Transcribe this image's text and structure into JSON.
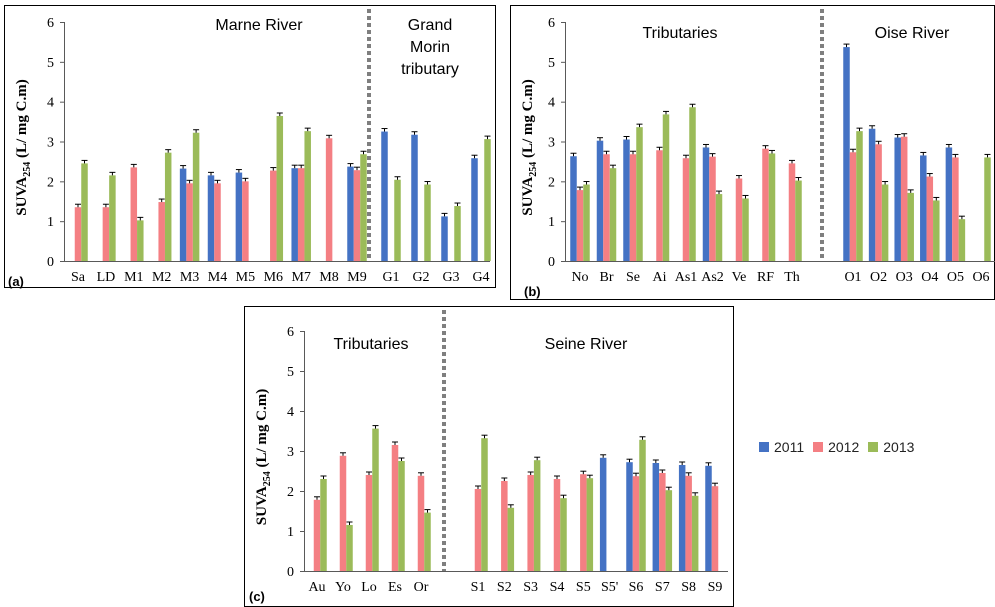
{
  "colors": {
    "2011": "#4472C4",
    "2012": "#F47F83",
    "2013": "#9BBB59",
    "divider": "#7f7f7f",
    "axis": "#595959"
  },
  "legend": [
    {
      "label": "2011",
      "color": "#4472C4"
    },
    {
      "label": "2012",
      "color": "#F47F83"
    },
    {
      "label": "2013",
      "color": "#9BBB59"
    }
  ],
  "chart_data": [
    {
      "panel": "(a)",
      "type": "bar",
      "ylabel_main": "SUVA",
      "ylabel_sub": "254",
      "ylabel_rest": " (L/ mg C.m)",
      "ylim": [
        0,
        6
      ],
      "yticks": [
        "0",
        "1",
        "2",
        "3",
        "4",
        "5",
        "6"
      ],
      "series_names": [
        "2011",
        "2012",
        "2013"
      ],
      "regions": [
        {
          "lines": [
            "Marne River"
          ],
          "categories": [
            "Sa",
            "LD",
            "M1",
            "M2",
            "M3",
            "M4",
            "M5",
            "M6",
            "M7",
            "M8",
            "M9"
          ]
        },
        {
          "lines": [
            "Grand",
            "Morin",
            "tributary"
          ],
          "categories": [
            "G1",
            "G2",
            "G3",
            "G4"
          ]
        }
      ],
      "values": [
        [
          null,
          1.35,
          2.45
        ],
        [
          null,
          1.35,
          2.15
        ],
        [
          null,
          2.35,
          1.02
        ],
        [
          null,
          1.48,
          2.72
        ],
        [
          2.32,
          1.95,
          3.22
        ],
        [
          2.15,
          1.95,
          null
        ],
        [
          2.22,
          2.0,
          null
        ],
        [
          null,
          2.27,
          3.64
        ],
        [
          2.33,
          2.33,
          3.26
        ],
        [
          null,
          3.08,
          null
        ],
        [
          2.37,
          2.28,
          2.68
        ],
        [
          3.25,
          null,
          2.04
        ],
        [
          3.17,
          null,
          1.92
        ],
        [
          1.12,
          null,
          1.38
        ],
        [
          2.58,
          null,
          3.06
        ]
      ]
    },
    {
      "panel": "(b)",
      "type": "bar",
      "ylabel_main": "SUVA",
      "ylabel_sub": "254",
      "ylabel_rest": " (L/ mg C.m)",
      "ylim": [
        0,
        6
      ],
      "yticks": [
        "0",
        "1",
        "2",
        "3",
        "4",
        "5",
        "6"
      ],
      "series_names": [
        "2011",
        "2012",
        "2013"
      ],
      "regions": [
        {
          "lines": [
            "Tributaries"
          ],
          "categories": [
            "No",
            "Br",
            "Se",
            "Ai",
            "As1",
            "As2",
            "Ve",
            "RF",
            "Th"
          ]
        },
        {
          "lines": [
            "Oise River"
          ],
          "categories": [
            "O1",
            "O2",
            "O3",
            "O4",
            "O5",
            "O6"
          ]
        }
      ],
      "values": [
        [
          2.63,
          1.78,
          1.92
        ],
        [
          3.02,
          2.68,
          2.33
        ],
        [
          3.05,
          2.68,
          3.36
        ],
        [
          null,
          2.78,
          3.68
        ],
        [
          null,
          2.58,
          3.86
        ],
        [
          2.85,
          2.62,
          1.68
        ],
        [
          null,
          2.07,
          1.57
        ],
        [
          null,
          2.82,
          2.7
        ],
        [
          null,
          2.45,
          2.02
        ],
        [
          5.37,
          2.73,
          3.26
        ],
        [
          3.32,
          2.93,
          1.92
        ],
        [
          3.1,
          3.12,
          1.71
        ],
        [
          2.65,
          2.12,
          1.52
        ],
        [
          2.85,
          2.6,
          1.05
        ],
        [
          null,
          null,
          2.6
        ]
      ]
    },
    {
      "panel": "(c)",
      "type": "bar",
      "ylabel_main": "SUVA",
      "ylabel_sub": "254",
      "ylabel_rest": " (L/ mg C.m)",
      "ylim": [
        0,
        6
      ],
      "yticks": [
        "0",
        "1",
        "2",
        "3",
        "4",
        "5",
        "6"
      ],
      "series_names": [
        "2011",
        "2012",
        "2013"
      ],
      "regions": [
        {
          "lines": [
            "Tributaries"
          ],
          "categories": [
            "Au",
            "Yo",
            "Lo",
            "Es",
            "Or"
          ]
        },
        {
          "lines": [
            "Seine River"
          ],
          "categories": [
            "S1",
            "S2",
            "S3",
            "S4",
            "S5",
            "S5'",
            "S6",
            "S7",
            "S8",
            "S9"
          ]
        }
      ],
      "values": [
        [
          null,
          1.78,
          2.3
        ],
        [
          null,
          2.88,
          1.15
        ],
        [
          null,
          2.4,
          3.56
        ],
        [
          null,
          3.15,
          2.75
        ],
        [
          null,
          2.38,
          1.46
        ],
        [
          null,
          2.05,
          3.32
        ],
        [
          null,
          2.25,
          1.58
        ],
        [
          null,
          2.4,
          2.77
        ],
        [
          null,
          2.3,
          1.82
        ],
        [
          null,
          2.42,
          2.32
        ],
        [
          2.83,
          null,
          null
        ],
        [
          2.72,
          2.37,
          3.28
        ],
        [
          2.7,
          2.45,
          2.02
        ],
        [
          2.65,
          2.38,
          1.88
        ],
        [
          2.63,
          2.12,
          null
        ]
      ]
    }
  ]
}
